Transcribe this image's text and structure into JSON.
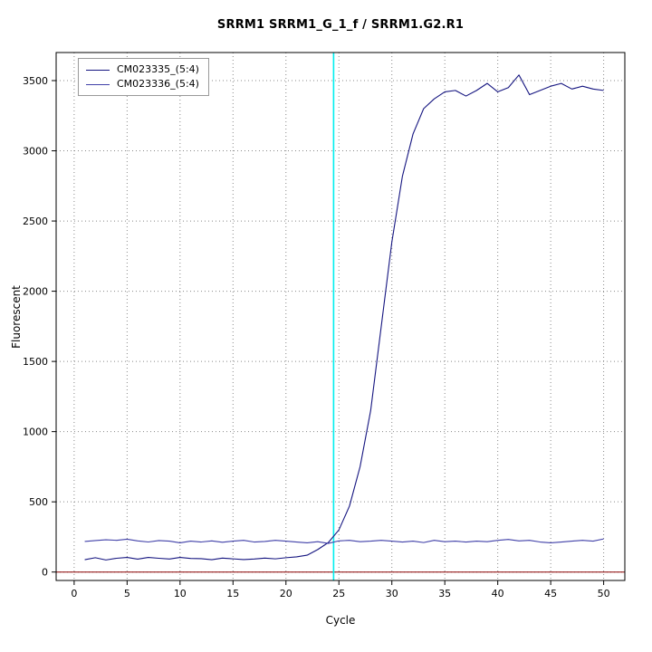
{
  "title": "SRRM1  SRRM1_G_1_f / SRRM1.G2.R1",
  "chart_data": {
    "type": "line",
    "title": "SRRM1  SRRM1_G_1_f / SRRM1.G2.R1",
    "xlabel": "Cycle",
    "ylabel": "Fluorescent",
    "xlim": [
      -1.7,
      52
    ],
    "ylim": [
      -60,
      3700
    ],
    "xticks": [
      0,
      5,
      10,
      15,
      20,
      25,
      30,
      35,
      40,
      45,
      50
    ],
    "yticks": [
      0,
      500,
      1000,
      1500,
      2000,
      2500,
      3000,
      3500
    ],
    "grid": "dotted",
    "grid_color": "#888888",
    "legend_position": "top-left",
    "threshold_line": {
      "x": 24.5,
      "color": "#00eeee"
    },
    "baseline": {
      "y": 0,
      "color": "#8b0000"
    },
    "x": [
      1,
      2,
      3,
      4,
      5,
      6,
      7,
      8,
      9,
      10,
      11,
      12,
      13,
      14,
      15,
      16,
      17,
      18,
      19,
      20,
      21,
      22,
      23,
      24,
      25,
      26,
      27,
      28,
      29,
      30,
      31,
      32,
      33,
      34,
      35,
      36,
      37,
      38,
      39,
      40,
      41,
      42,
      43,
      44,
      45,
      46,
      47,
      48,
      49,
      50
    ],
    "series": [
      {
        "name": "CM023335_(5:4)",
        "color": "#151580",
        "values": [
          88,
          102,
          86,
          98,
          104,
          92,
          104,
          98,
          93,
          104,
          97,
          95,
          88,
          99,
          94,
          89,
          93,
          99,
          94,
          102,
          108,
          120,
          160,
          210,
          300,
          470,
          750,
          1150,
          1750,
          2350,
          2820,
          3120,
          3300,
          3370,
          3420,
          3430,
          3390,
          3430,
          3480,
          3420,
          3450,
          3540,
          3400,
          3430,
          3460,
          3480,
          3440,
          3460,
          3440,
          3430
        ]
      },
      {
        "name": "CM023336_(5:4)",
        "color": "#4040a8",
        "values": [
          218,
          224,
          230,
          226,
          234,
          222,
          214,
          224,
          220,
          208,
          220,
          214,
          222,
          212,
          220,
          226,
          214,
          218,
          226,
          220,
          214,
          208,
          216,
          204,
          222,
          226,
          216,
          220,
          226,
          220,
          214,
          220,
          210,
          226,
          216,
          220,
          214,
          220,
          216,
          226,
          232,
          222,
          226,
          214,
          208,
          214,
          220,
          226,
          220,
          236
        ]
      }
    ]
  }
}
